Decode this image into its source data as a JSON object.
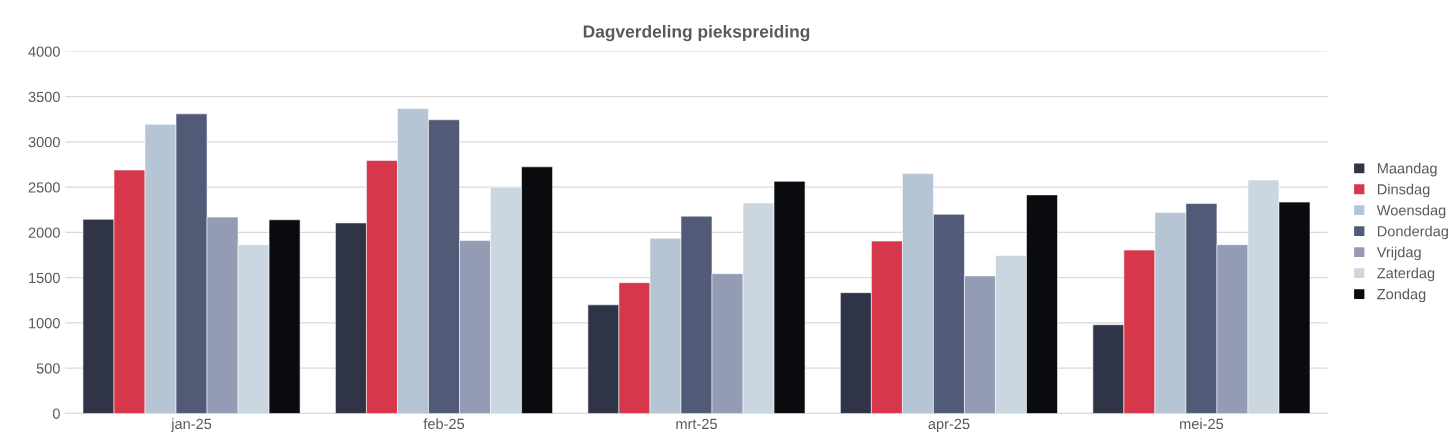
{
  "chart_data": {
    "type": "bar",
    "title": "Dagverdeling piekspreiding",
    "categories": [
      "jan-25",
      "feb-25",
      "mrt-25",
      "apr-25",
      "mei-25"
    ],
    "series": [
      {
        "name": "Maandag",
        "color": "#2f3447",
        "values": [
          2145,
          2105,
          1200,
          1335,
          980
        ]
      },
      {
        "name": "Dinsdag",
        "color": "#d6374a",
        "values": [
          2690,
          2795,
          1445,
          1905,
          1805
        ]
      },
      {
        "name": "Woensdag",
        "color": "#b5c5d4",
        "values": [
          3195,
          3370,
          1935,
          2650,
          2220
        ]
      },
      {
        "name": "Donderdag",
        "color": "#515b77",
        "values": [
          3310,
          3245,
          2180,
          2200,
          2320
        ]
      },
      {
        "name": "Vrijdag",
        "color": "#949bb5",
        "values": [
          2170,
          1910,
          1545,
          1520,
          1865
        ]
      },
      {
        "name": "Zaterdag",
        "color": "#cbd7e0",
        "values": [
          1865,
          2500,
          2325,
          1745,
          2580
        ]
      },
      {
        "name": "Zondag",
        "color": "#0a0b0f",
        "values": [
          2140,
          2725,
          2565,
          2415,
          2335
        ]
      }
    ],
    "ylim": [
      0,
      4000
    ],
    "yticks": [
      0,
      500,
      1000,
      1500,
      2000,
      2500,
      3000,
      3500,
      4000
    ],
    "grid": "y",
    "legend": "right"
  }
}
